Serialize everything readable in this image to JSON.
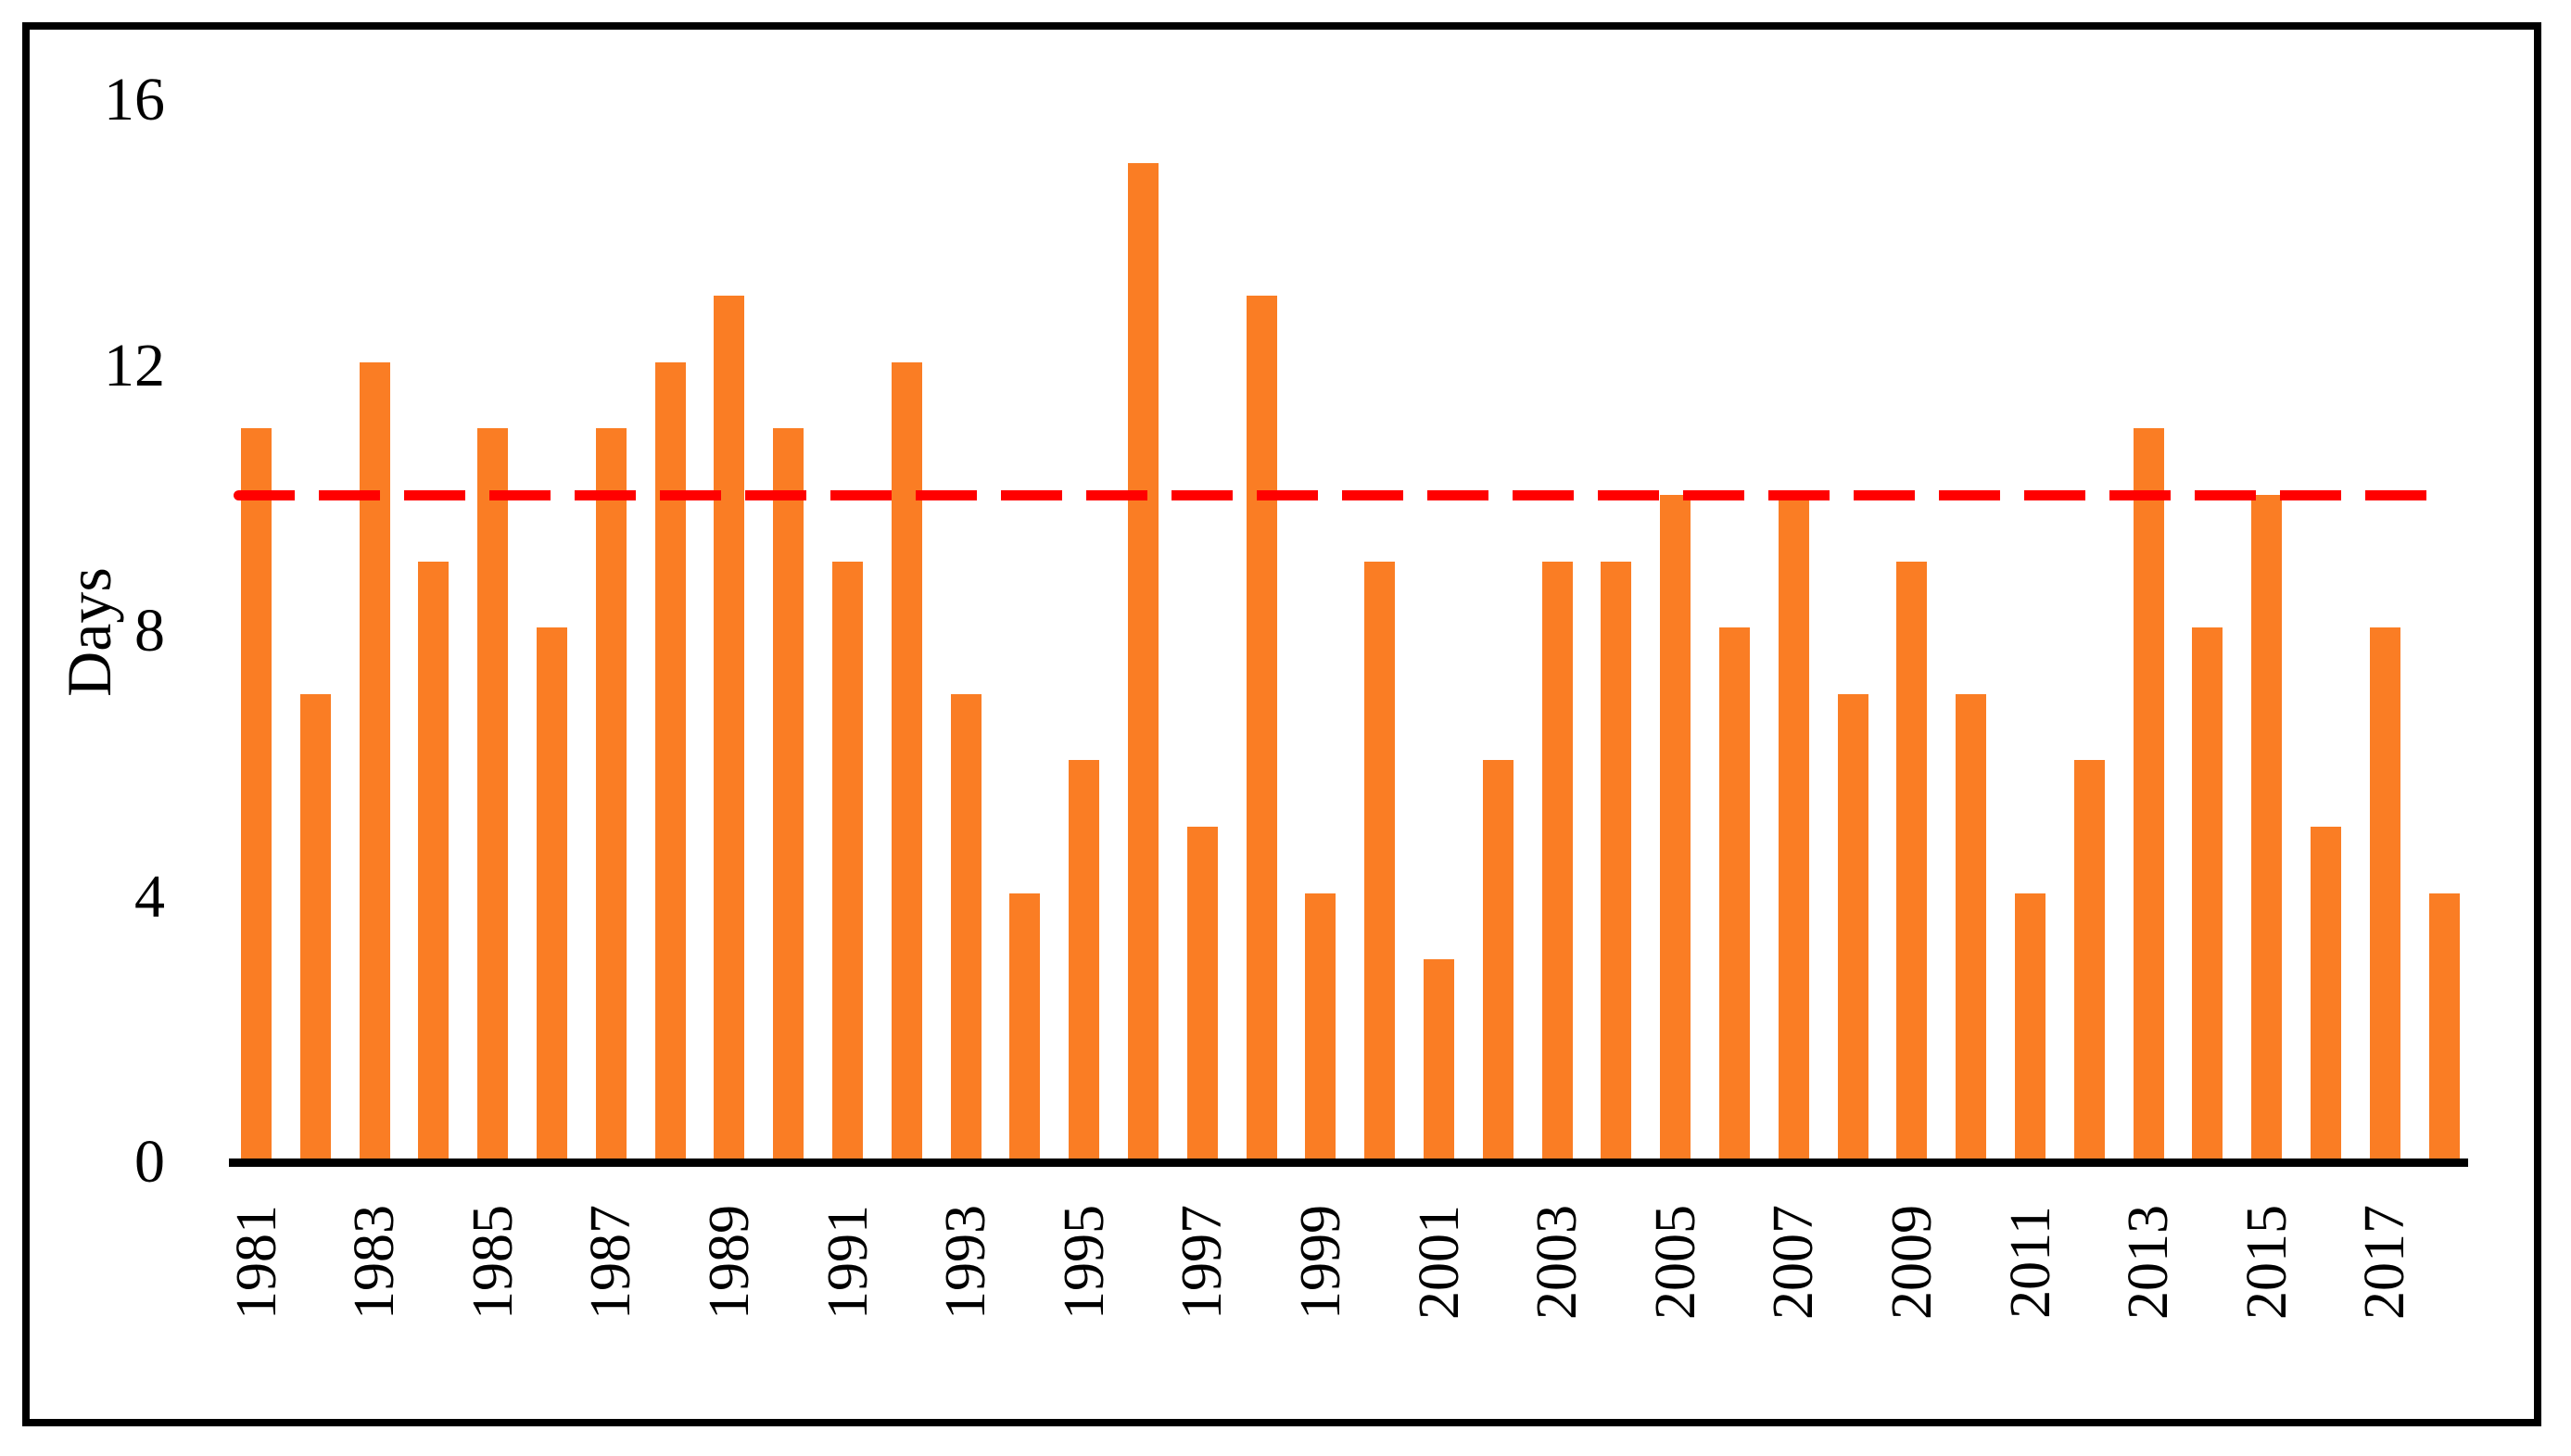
{
  "figure": {
    "background": "#FFFFFF",
    "frame_color": "#000000"
  },
  "chart_data": {
    "type": "bar",
    "title": "",
    "xlabel": "",
    "ylabel": "Days",
    "categories": [
      "1981",
      "1982",
      "1983",
      "1984",
      "1985",
      "1986",
      "1987",
      "1988",
      "1989",
      "1990",
      "1991",
      "1992",
      "1993",
      "1994",
      "1995",
      "1996",
      "1997",
      "1998",
      "1999",
      "2000",
      "2001",
      "2002",
      "2003",
      "2004",
      "2005",
      "2006",
      "2007",
      "2008",
      "2009",
      "2010",
      "2011",
      "2012",
      "2013",
      "2014",
      "2015",
      "2016",
      "2017",
      "2018"
    ],
    "values": [
      11,
      7,
      12,
      9,
      11,
      8,
      11,
      12,
      13,
      11,
      9,
      12,
      7,
      4,
      6,
      15,
      5,
      13,
      4,
      9,
      3,
      6,
      9,
      9,
      10,
      8,
      10,
      7,
      9,
      7,
      4,
      6,
      11,
      8,
      10,
      5,
      8,
      4
    ],
    "ylim": [
      0,
      16
    ],
    "yticks": [
      0,
      4,
      8,
      12,
      16
    ],
    "xtick_labels": [
      "1981",
      "1983",
      "1985",
      "1987",
      "1989",
      "1991",
      "1993",
      "1995",
      "1997",
      "1999",
      "2001",
      "2003",
      "2005",
      "2007",
      "2009",
      "2011",
      "2013",
      "2015",
      "2017"
    ],
    "bar_color": "#FA7D24",
    "axis_color": "#000000",
    "grid": false,
    "legend": false,
    "reference_line": {
      "value": 10,
      "color": "#FF0000",
      "style": "dashed"
    }
  }
}
